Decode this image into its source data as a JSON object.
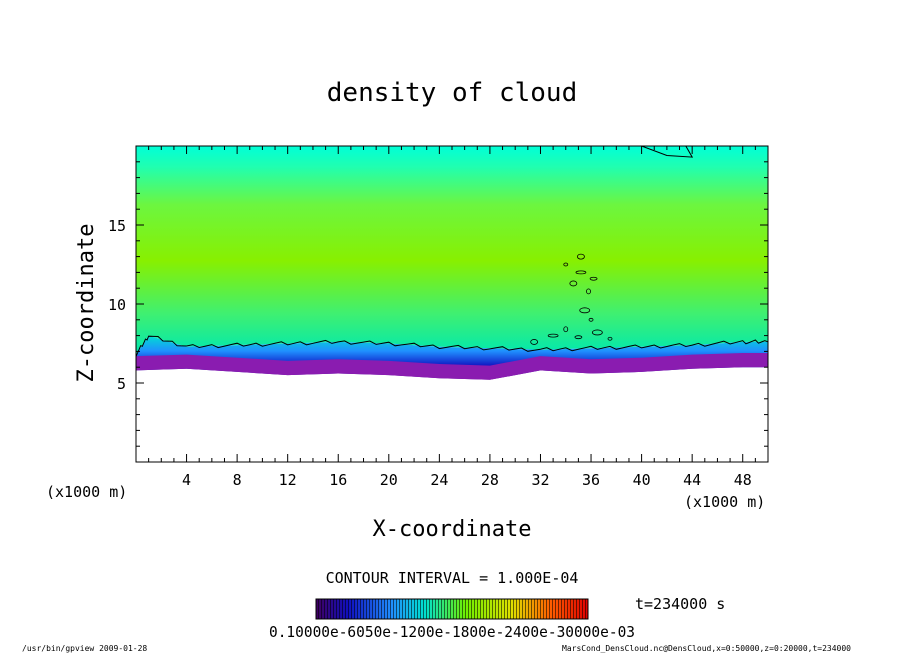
{
  "chart_data": {
    "type": "heatmap",
    "title": "density of cloud",
    "xlabel": "X-coordinate",
    "ylabel": "Z-coordinate",
    "x_unit": "(x1000 m)",
    "y_unit": "(x1000 m)",
    "xlim": [
      0,
      50
    ],
    "ylim": [
      0,
      20
    ],
    "x_ticks": [
      4,
      8,
      12,
      16,
      20,
      24,
      28,
      32,
      36,
      40,
      44,
      48
    ],
    "y_ticks": [
      5,
      10,
      15
    ],
    "grid": false,
    "contour_interval_text": "CONTOUR INTERVAL = 1.000E-04",
    "time_text": "t=234000 s",
    "colorbar_labels_text": "0.10000e-6050e-1200e-1800e-2400e-30000e-03",
    "cloud_layer": {
      "base_profile": [
        [
          0,
          5.8
        ],
        [
          4,
          5.9
        ],
        [
          8,
          5.7
        ],
        [
          12,
          5.5
        ],
        [
          16,
          5.6
        ],
        [
          20,
          5.5
        ],
        [
          24,
          5.3
        ],
        [
          28,
          5.2
        ],
        [
          32,
          5.8
        ],
        [
          36,
          5.6
        ],
        [
          40,
          5.7
        ],
        [
          44,
          5.9
        ],
        [
          48,
          6.0
        ],
        [
          50,
          6.0
        ]
      ],
      "contour_profile": [
        [
          0,
          6.8
        ],
        [
          1,
          8.0
        ],
        [
          4,
          7.3
        ],
        [
          8,
          7.4
        ],
        [
          12,
          7.5
        ],
        [
          16,
          7.6
        ],
        [
          20,
          7.5
        ],
        [
          24,
          7.3
        ],
        [
          28,
          7.2
        ],
        [
          32,
          7.1
        ],
        [
          36,
          7.2
        ],
        [
          40,
          7.3
        ],
        [
          44,
          7.4
        ],
        [
          48,
          7.6
        ],
        [
          50,
          7.6
        ]
      ],
      "top_contour": [
        [
          40,
          20
        ],
        [
          42,
          19.4
        ],
        [
          44,
          19.3
        ],
        [
          43.5,
          20
        ]
      ]
    },
    "colors": {
      "top": "#00ffd8",
      "mid": "#7cf000",
      "upper": "#00f088",
      "low_blue": "#2090ff",
      "deep_blue": "#1010c0",
      "purple": "#8a1cb0"
    }
  },
  "footer": {
    "left": "/usr/bin/gpview  2009-01-28",
    "right": "MarsCond_DensCloud.nc@DensCloud,x=0:50000,z=0:20000,t=234000"
  }
}
